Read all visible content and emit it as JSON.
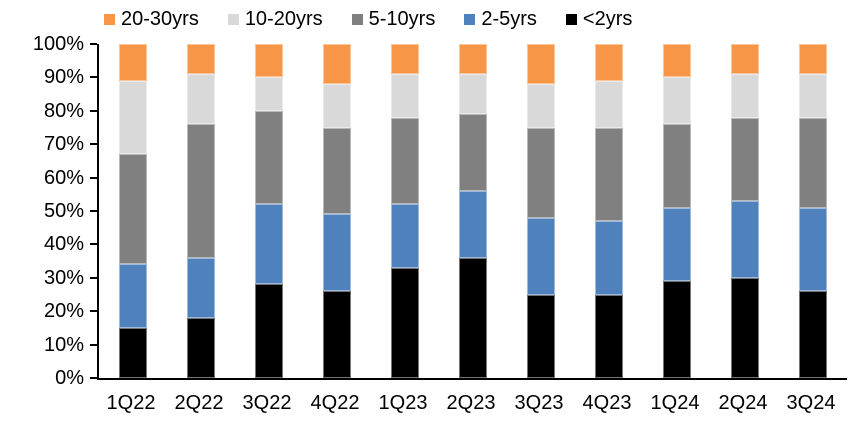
{
  "chart_data": {
    "type": "bar",
    "subtype": "stacked-100-percent",
    "title": "",
    "xlabel": "",
    "ylabel": "",
    "ylim": [
      0,
      100
    ],
    "grid": false,
    "legend_position": "top",
    "y_tick_labels": [
      "0%",
      "10%",
      "20%",
      "30%",
      "40%",
      "50%",
      "60%",
      "70%",
      "80%",
      "90%",
      "100%"
    ],
    "categories": [
      "1Q22",
      "2Q22",
      "3Q22",
      "4Q22",
      "1Q23",
      "2Q23",
      "3Q23",
      "4Q23",
      "1Q24",
      "2Q24",
      "3Q24"
    ],
    "series": [
      {
        "name": "<2yrs",
        "color": "#000000",
        "values": [
          15,
          18,
          28,
          26,
          33,
          36,
          25,
          25,
          29,
          30,
          26
        ]
      },
      {
        "name": "2-5yrs",
        "color": "#4F81BD",
        "values": [
          19,
          18,
          24,
          23,
          19,
          20,
          23,
          22,
          22,
          23,
          25
        ]
      },
      {
        "name": "5-10yrs",
        "color": "#808080",
        "values": [
          33,
          40,
          28,
          26,
          26,
          23,
          27,
          28,
          25,
          25,
          27
        ]
      },
      {
        "name": "10-20yrs",
        "color": "#D9D9D9",
        "values": [
          22,
          15,
          10,
          13,
          13,
          12,
          13,
          14,
          14,
          13,
          13
        ]
      },
      {
        "name": "20-30yrs",
        "color": "#F79646",
        "values": [
          11,
          9,
          10,
          12,
          9,
          9,
          12,
          11,
          10,
          9,
          9
        ]
      }
    ],
    "legend_order": [
      "20-30yrs",
      "10-20yrs",
      "5-10yrs",
      "2-5yrs",
      "<2yrs"
    ]
  }
}
